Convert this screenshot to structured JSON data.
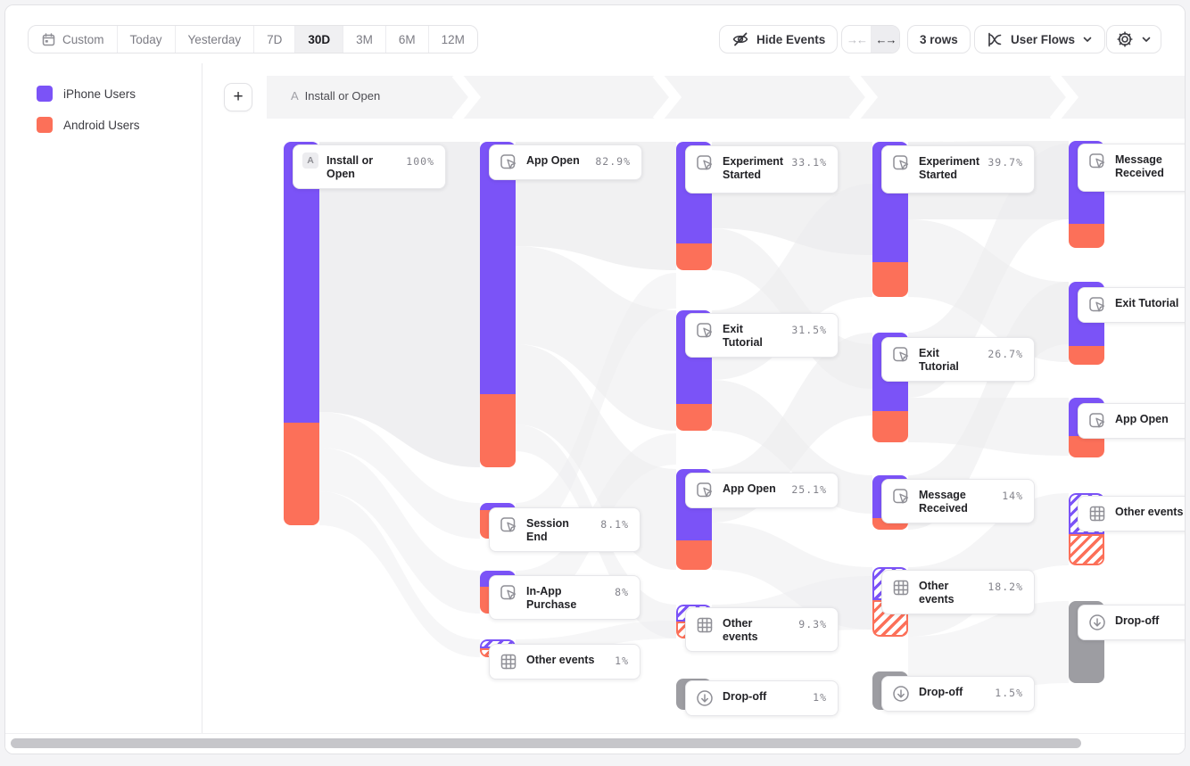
{
  "toolbar": {
    "date_ranges": [
      {
        "label": "Custom",
        "icon": "calendar-icon",
        "selected": false
      },
      {
        "label": "Today",
        "selected": false
      },
      {
        "label": "Yesterday",
        "selected": false
      },
      {
        "label": "7D",
        "selected": false
      },
      {
        "label": "30D",
        "selected": true
      },
      {
        "label": "3M",
        "selected": false
      },
      {
        "label": "6M",
        "selected": false
      },
      {
        "label": "12M",
        "selected": false
      }
    ],
    "hide_events_label": "Hide Events",
    "collapse_icon": "collapse-columns-icon",
    "expand_icon": "expand-columns-icon",
    "rows_label": "3 rows",
    "view_selector_label": "User Flows",
    "settings_icon": "gear-icon"
  },
  "legend": {
    "items": [
      {
        "label": "iPhone Users",
        "color": "#7b53f7"
      },
      {
        "label": "Android Users",
        "color": "#fc7059"
      }
    ]
  },
  "flow_header": {
    "badge": "A",
    "label": "Install or Open"
  },
  "chart_data": {
    "type": "sankey-user-flow",
    "series": [
      "iPhone Users",
      "Android Users"
    ],
    "columns": [
      {
        "step": 1,
        "nodes": [
          {
            "label": "Install or Open",
            "value": "100%",
            "kind": "start",
            "badge": "A"
          }
        ]
      },
      {
        "step": 2,
        "nodes": [
          {
            "label": "App Open",
            "value": "82.9%",
            "kind": "event"
          },
          {
            "label": "Session End",
            "value": "8.1%",
            "kind": "event"
          },
          {
            "label": "In-App Purchase",
            "value": "8%",
            "kind": "event"
          },
          {
            "label": "Other events",
            "value": "1%",
            "kind": "other"
          }
        ]
      },
      {
        "step": 3,
        "nodes": [
          {
            "label": "Experiment Started",
            "value": "33.1%",
            "kind": "event"
          },
          {
            "label": "Exit Tutorial",
            "value": "31.5%",
            "kind": "event"
          },
          {
            "label": "App Open",
            "value": "25.1%",
            "kind": "event"
          },
          {
            "label": "Other events",
            "value": "9.3%",
            "kind": "other"
          },
          {
            "label": "Drop-off",
            "value": "1%",
            "kind": "dropoff"
          }
        ]
      },
      {
        "step": 4,
        "nodes": [
          {
            "label": "Experiment Started",
            "value": "39.7%",
            "kind": "event"
          },
          {
            "label": "Exit Tutorial",
            "value": "26.7%",
            "kind": "event"
          },
          {
            "label": "Message Received",
            "value": "14%",
            "kind": "event"
          },
          {
            "label": "Other events",
            "value": "18.2%",
            "kind": "other"
          },
          {
            "label": "Drop-off",
            "value": "1.5%",
            "kind": "dropoff"
          }
        ]
      },
      {
        "step": 5,
        "nodes": [
          {
            "label": "Message Received",
            "value": "",
            "kind": "event"
          },
          {
            "label": "Exit Tutorial",
            "value": "",
            "kind": "event"
          },
          {
            "label": "App Open",
            "value": "",
            "kind": "event"
          },
          {
            "label": "Other events",
            "value": "",
            "kind": "other"
          },
          {
            "label": "Drop-off",
            "value": "",
            "kind": "dropoff"
          }
        ]
      }
    ]
  },
  "colors": {
    "iphone": "#7b53f7",
    "android": "#fc7059",
    "dropoff": "#9d9da2"
  }
}
